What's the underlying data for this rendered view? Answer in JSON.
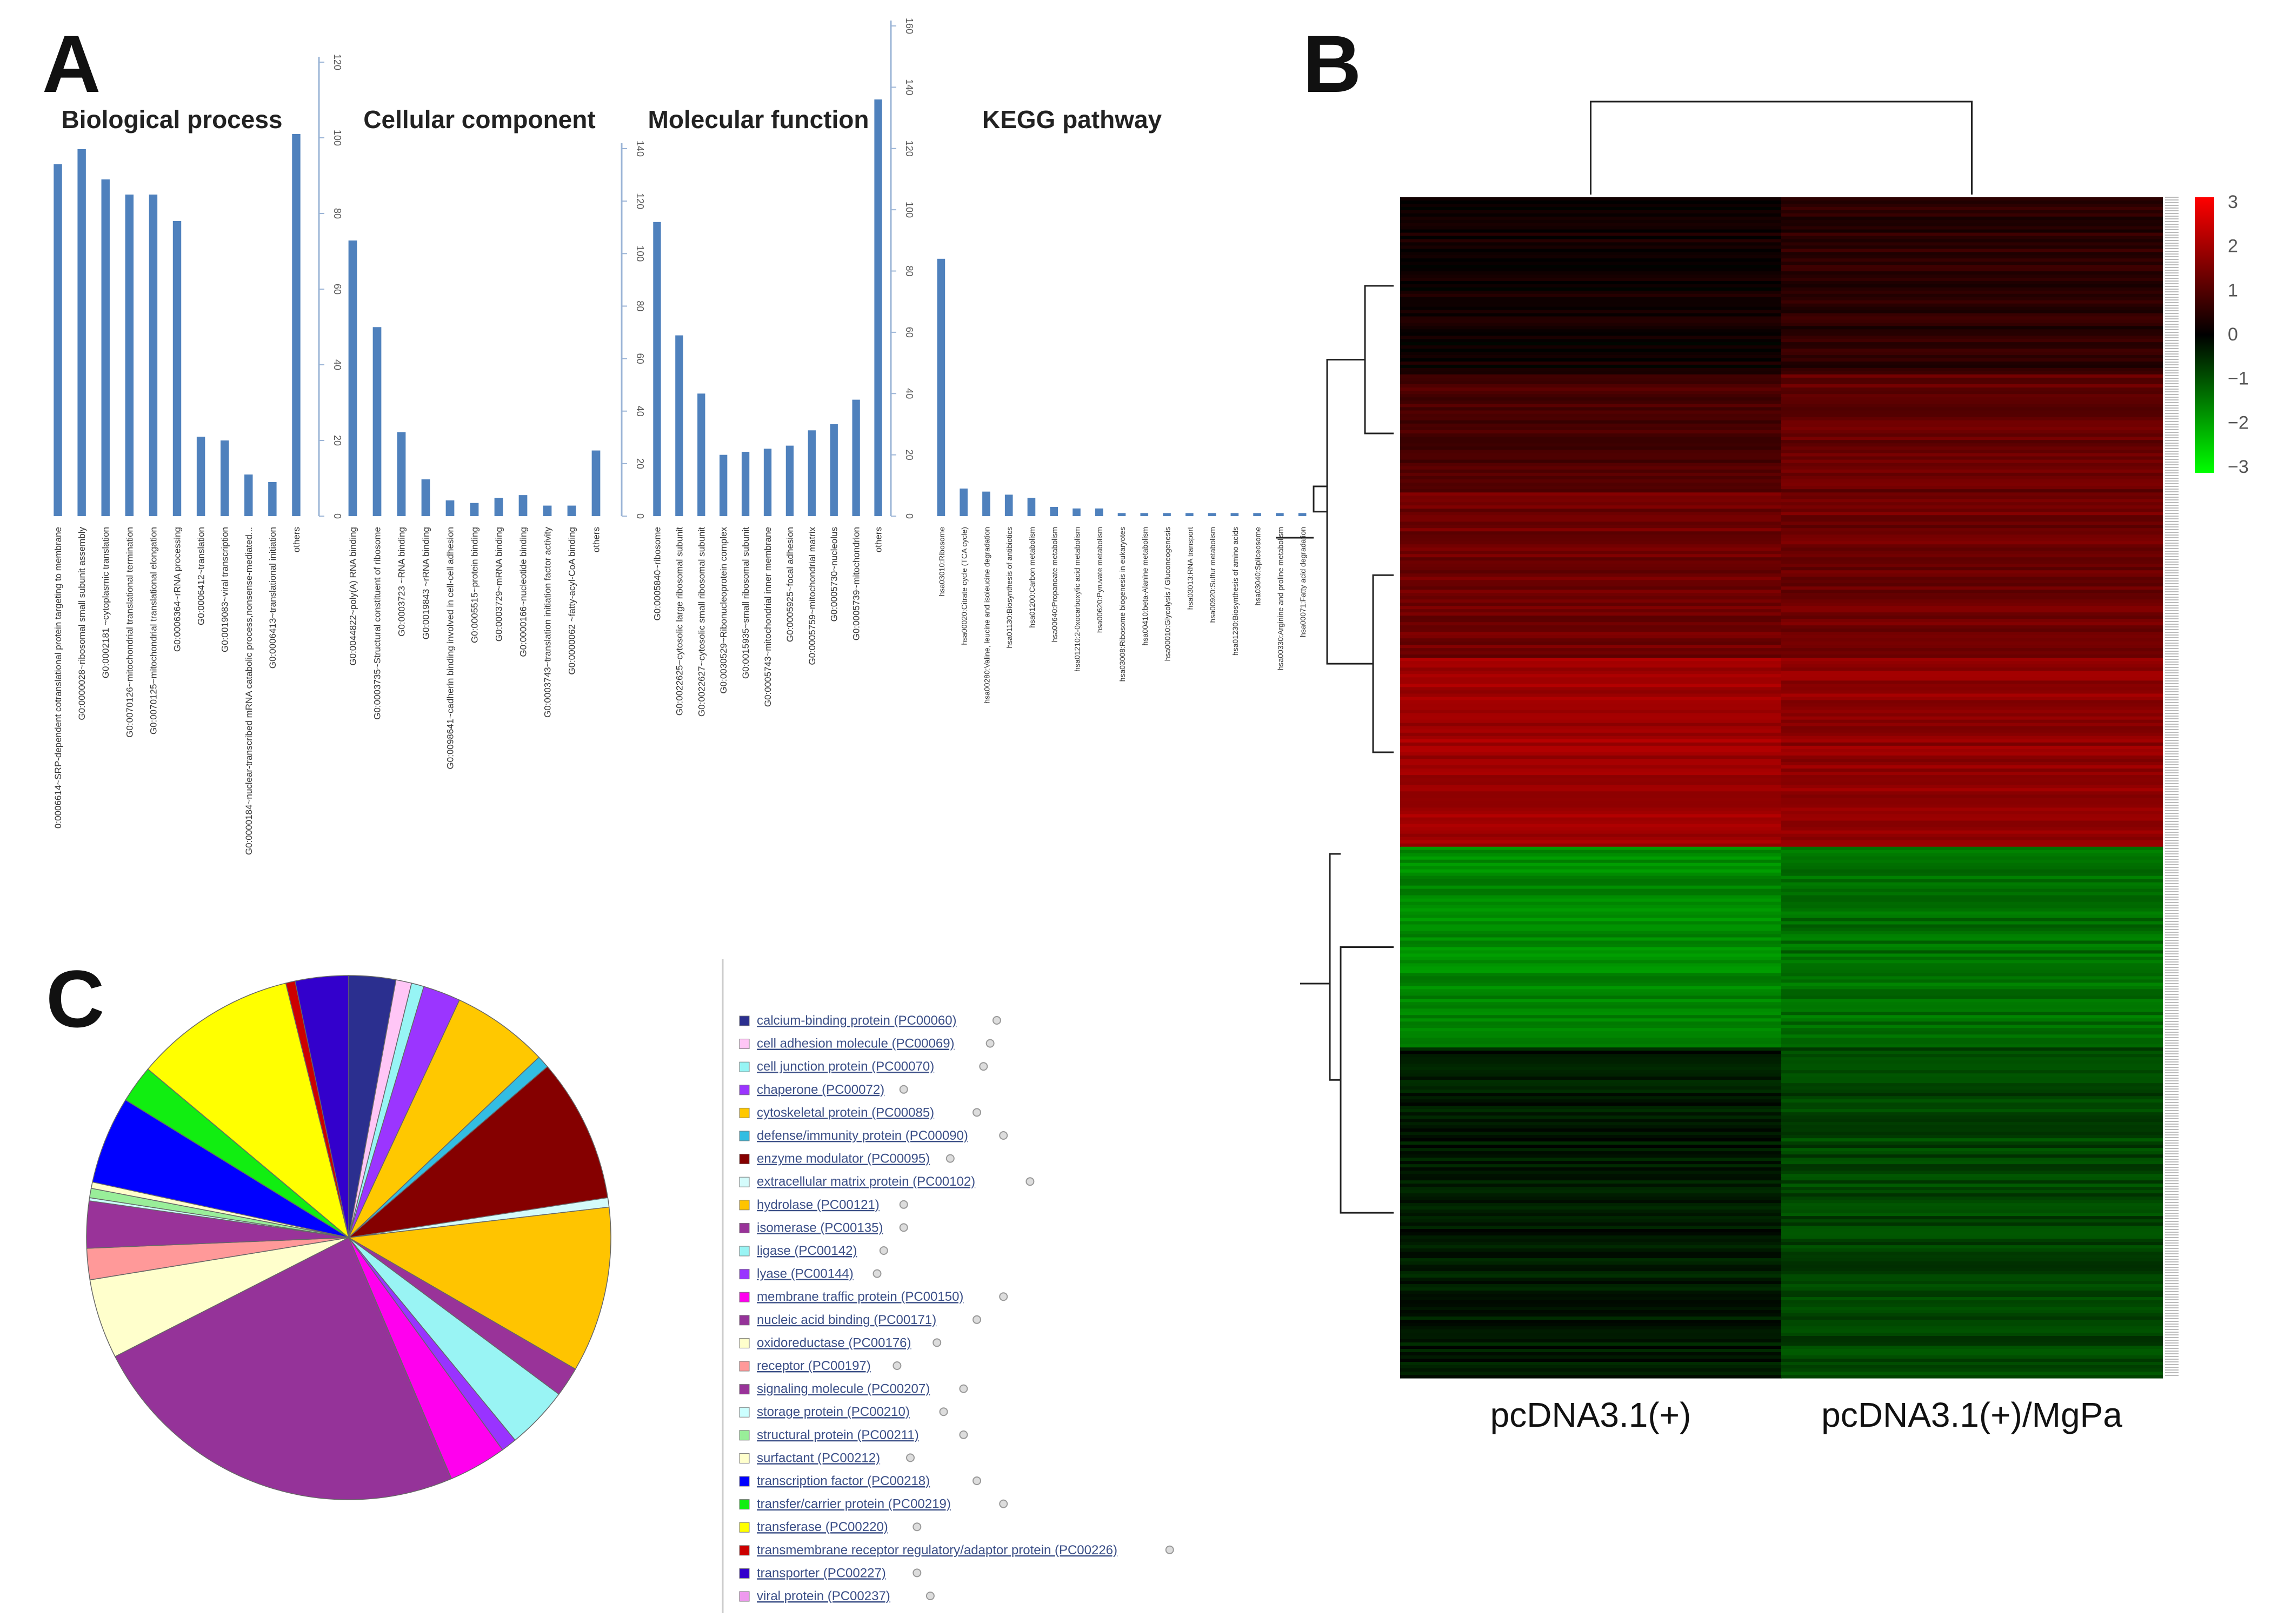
{
  "panels": {
    "a": "A",
    "b": "B",
    "c": "C"
  },
  "chart_data": [
    {
      "id": "bp",
      "type": "bar",
      "title": "Biological process",
      "ylim": [
        0,
        120
      ],
      "yticks": [
        0,
        20,
        40,
        60,
        80,
        100,
        120
      ],
      "categories": [
        "0:0006614~SRP-dependent cotranslational protein targeting to membrane",
        "G0:0000028~ribosomal small subunit assembly",
        "G0:0002181 ~cytoplasmic translation",
        "G0:0070126~mitochondrial translational termination",
        "G0:0070125~mitochondrial translational elongation",
        "G0:0006364~rRNA processing",
        "G0:0006412~translation",
        "G0:0019083~viral transcription",
        "G0:0000184~nuclear-transcribed mRNA catabolic process,nonsense-mediated...",
        "G0:0006413~translational initiation",
        "others"
      ],
      "values": [
        93,
        97,
        89,
        85,
        85,
        78,
        21,
        20,
        11,
        9,
        101
      ]
    },
    {
      "id": "cc",
      "type": "bar",
      "title": "Cellular component",
      "ylim": [
        0,
        140
      ],
      "yticks": [
        0,
        20,
        40,
        60,
        80,
        100,
        120,
        140
      ],
      "categories": [
        "G0:0044822~poly(A) RNA binding",
        "G0:0003735~Structural constituent of ribosome",
        "G0:0003723 ~RNA binding",
        "G0:0019843 ~rRNA binding",
        "G0:0098641~cadherin binding involved in cell-cell adhesion",
        "G0:0005515~protein binding",
        "G0:0003729~mRNA binding",
        "G0:0000166~nucleotide binding",
        "G0:0003743~translation initiation factor activity",
        "G0:0000062 ~fatty-acyl-CoA binding",
        "others"
      ],
      "values": [
        105,
        72,
        32,
        14,
        6,
        5,
        7,
        8,
        4,
        4,
        25
      ]
    },
    {
      "id": "mf",
      "type": "bar",
      "title": "Molecular function",
      "ylim": [
        0,
        160
      ],
      "yticks": [
        0,
        20,
        40,
        60,
        80,
        100,
        120,
        140,
        160
      ],
      "categories": [
        "G0:0005840~ribosome",
        "G0:0022625~cytosolic large ribosomal subunit",
        "G0:0022627~cytosolic small ribosomal subunit",
        "G0:0030529~Ribonucleoprotein complex",
        "G0:0015935~small ribosomal subunit",
        "G0:0005743~mitochondrial inner membrane",
        "G0:0005925~focal adhesion",
        "G0:0005759~mitochondrial matrix",
        "G0:0005730~nucleolus",
        "G0:0005739~mitochondrion",
        "others"
      ],
      "values": [
        96,
        59,
        40,
        20,
        21,
        22,
        23,
        28,
        30,
        38,
        136
      ]
    },
    {
      "id": "kegg",
      "type": "bar",
      "title": "KEGG pathway",
      "ylim": [
        0,
        160
      ],
      "categories": [
        "hsa03010:Ribosome",
        "hsa00020:Citrate cycle (TCA cycle)",
        "hsa00280:Valine, leucine and isoleucine degradation",
        "hsa01130:Biosynthesis of antibiotics",
        "hsa01200:Carbon metabolism",
        "hsa00640:Propanoate metabolism",
        "hsa01210:2-0xocarboxylic acid metabolism",
        "hsa00620:Pyruvate metabolism",
        "hsa03008:Ribosome biogenesis in eukaryotes",
        "hsa00410:beta-Alanine metabolism",
        "hsa00010:Glycolysis / Gluconeogenesis",
        "hsa03013:RNA transport",
        "hsa00920:Sulfur metabolism",
        "hsa01230:Biosynthesis of amino acids",
        "hsa03040:Spliceosome",
        "hsa00330:Arginine and proline metabolism",
        "hsa00071:Fatty acid degradation"
      ],
      "values": [
        84,
        9,
        8,
        7,
        6,
        3,
        2.5,
        2.5,
        1,
        1,
        1,
        1,
        1,
        1,
        1,
        1,
        1
      ]
    },
    {
      "id": "heatmap",
      "type": "heatmap",
      "columns": [
        "pcDNA3.1(+)",
        "pcDNA3.1(+)/MgPa"
      ],
      "colorbar_ticks": [
        "3",
        "2",
        "1",
        "0",
        "−1",
        "−2",
        "−3"
      ],
      "colorbar_range": [
        -3,
        3
      ],
      "colorbar_colors": {
        "high": "#ff0000",
        "mid": "#000000",
        "low": "#00ff00"
      },
      "clusters": [
        {
          "fraction": 0.15,
          "values": [
            0.2,
            0.5
          ]
        },
        {
          "fraction": 0.1,
          "values": [
            0.9,
            1.2
          ]
        },
        {
          "fraction": 0.14,
          "values": [
            1.3,
            1.3
          ]
        },
        {
          "fraction": 0.16,
          "values": [
            1.9,
            1.7
          ]
        },
        {
          "fraction": 0.17,
          "values": [
            -1.6,
            -1.3
          ]
        },
        {
          "fraction": 0.28,
          "values": [
            -0.3,
            -0.8
          ]
        }
      ]
    },
    {
      "id": "pie",
      "type": "pie",
      "categories": [
        "calcium-binding protein (PC00060)",
        "cell adhesion molecule (PC00069)",
        "cell junction protein (PC00070)",
        "chaperone (PC00072)",
        "cytoskeletal protein (PC00085)",
        "defense/immunity protein (PC00090)",
        "enzyme modulator (PC00095)",
        "extracellular matrix protein (PC00102)",
        "hydrolase (PC00121)",
        "isomerase (PC00135)",
        "ligase (PC00142)",
        "lyase (PC00144)",
        "membrane traffic protein (PC00150)",
        "nucleic acid binding (PC00171)",
        "oxidoreductase (PC00176)",
        "receptor (PC00197)",
        "signaling molecule (PC00207)",
        "storage protein (PC00210)",
        "structural protein (PC00211)",
        "surfactant (PC00212)",
        "transcription factor (PC00218)",
        "transfer/carrier protein (PC00219)",
        "transferase (PC00220)",
        "transmembrane receptor regulatory/adaptor protein (PC00226)",
        "transporter (PC00227)",
        "viral protein (PC00237)"
      ],
      "values": [
        3.0,
        1.0,
        0.8,
        2.4,
        6.2,
        0.8,
        9.2,
        0.6,
        10.6,
        1.9,
        4.0,
        1.0,
        3.7,
        24.8,
        5.1,
        2.0,
        3.0,
        0.2,
        0.6,
        0.4,
        5.6,
        2.4,
        10.4,
        0.6,
        3.4,
        0.0
      ],
      "colors": [
        "#2b2f8f",
        "#ffc6f6",
        "#97f5f5",
        "#9b35ff",
        "#ffc800",
        "#33bde2",
        "#850000",
        "#d4fbfb",
        "#ffc400",
        "#993399",
        "#99f4f4",
        "#9933ff",
        "#ff00ee",
        "#953399",
        "#ffffcc",
        "#ff9999",
        "#993399",
        "#ccffff",
        "#99ee99",
        "#ffffcc",
        "#0000ff",
        "#11ee11",
        "#ffff00",
        "#cc0000",
        "#3300cc",
        "#ee99ee"
      ]
    }
  ]
}
